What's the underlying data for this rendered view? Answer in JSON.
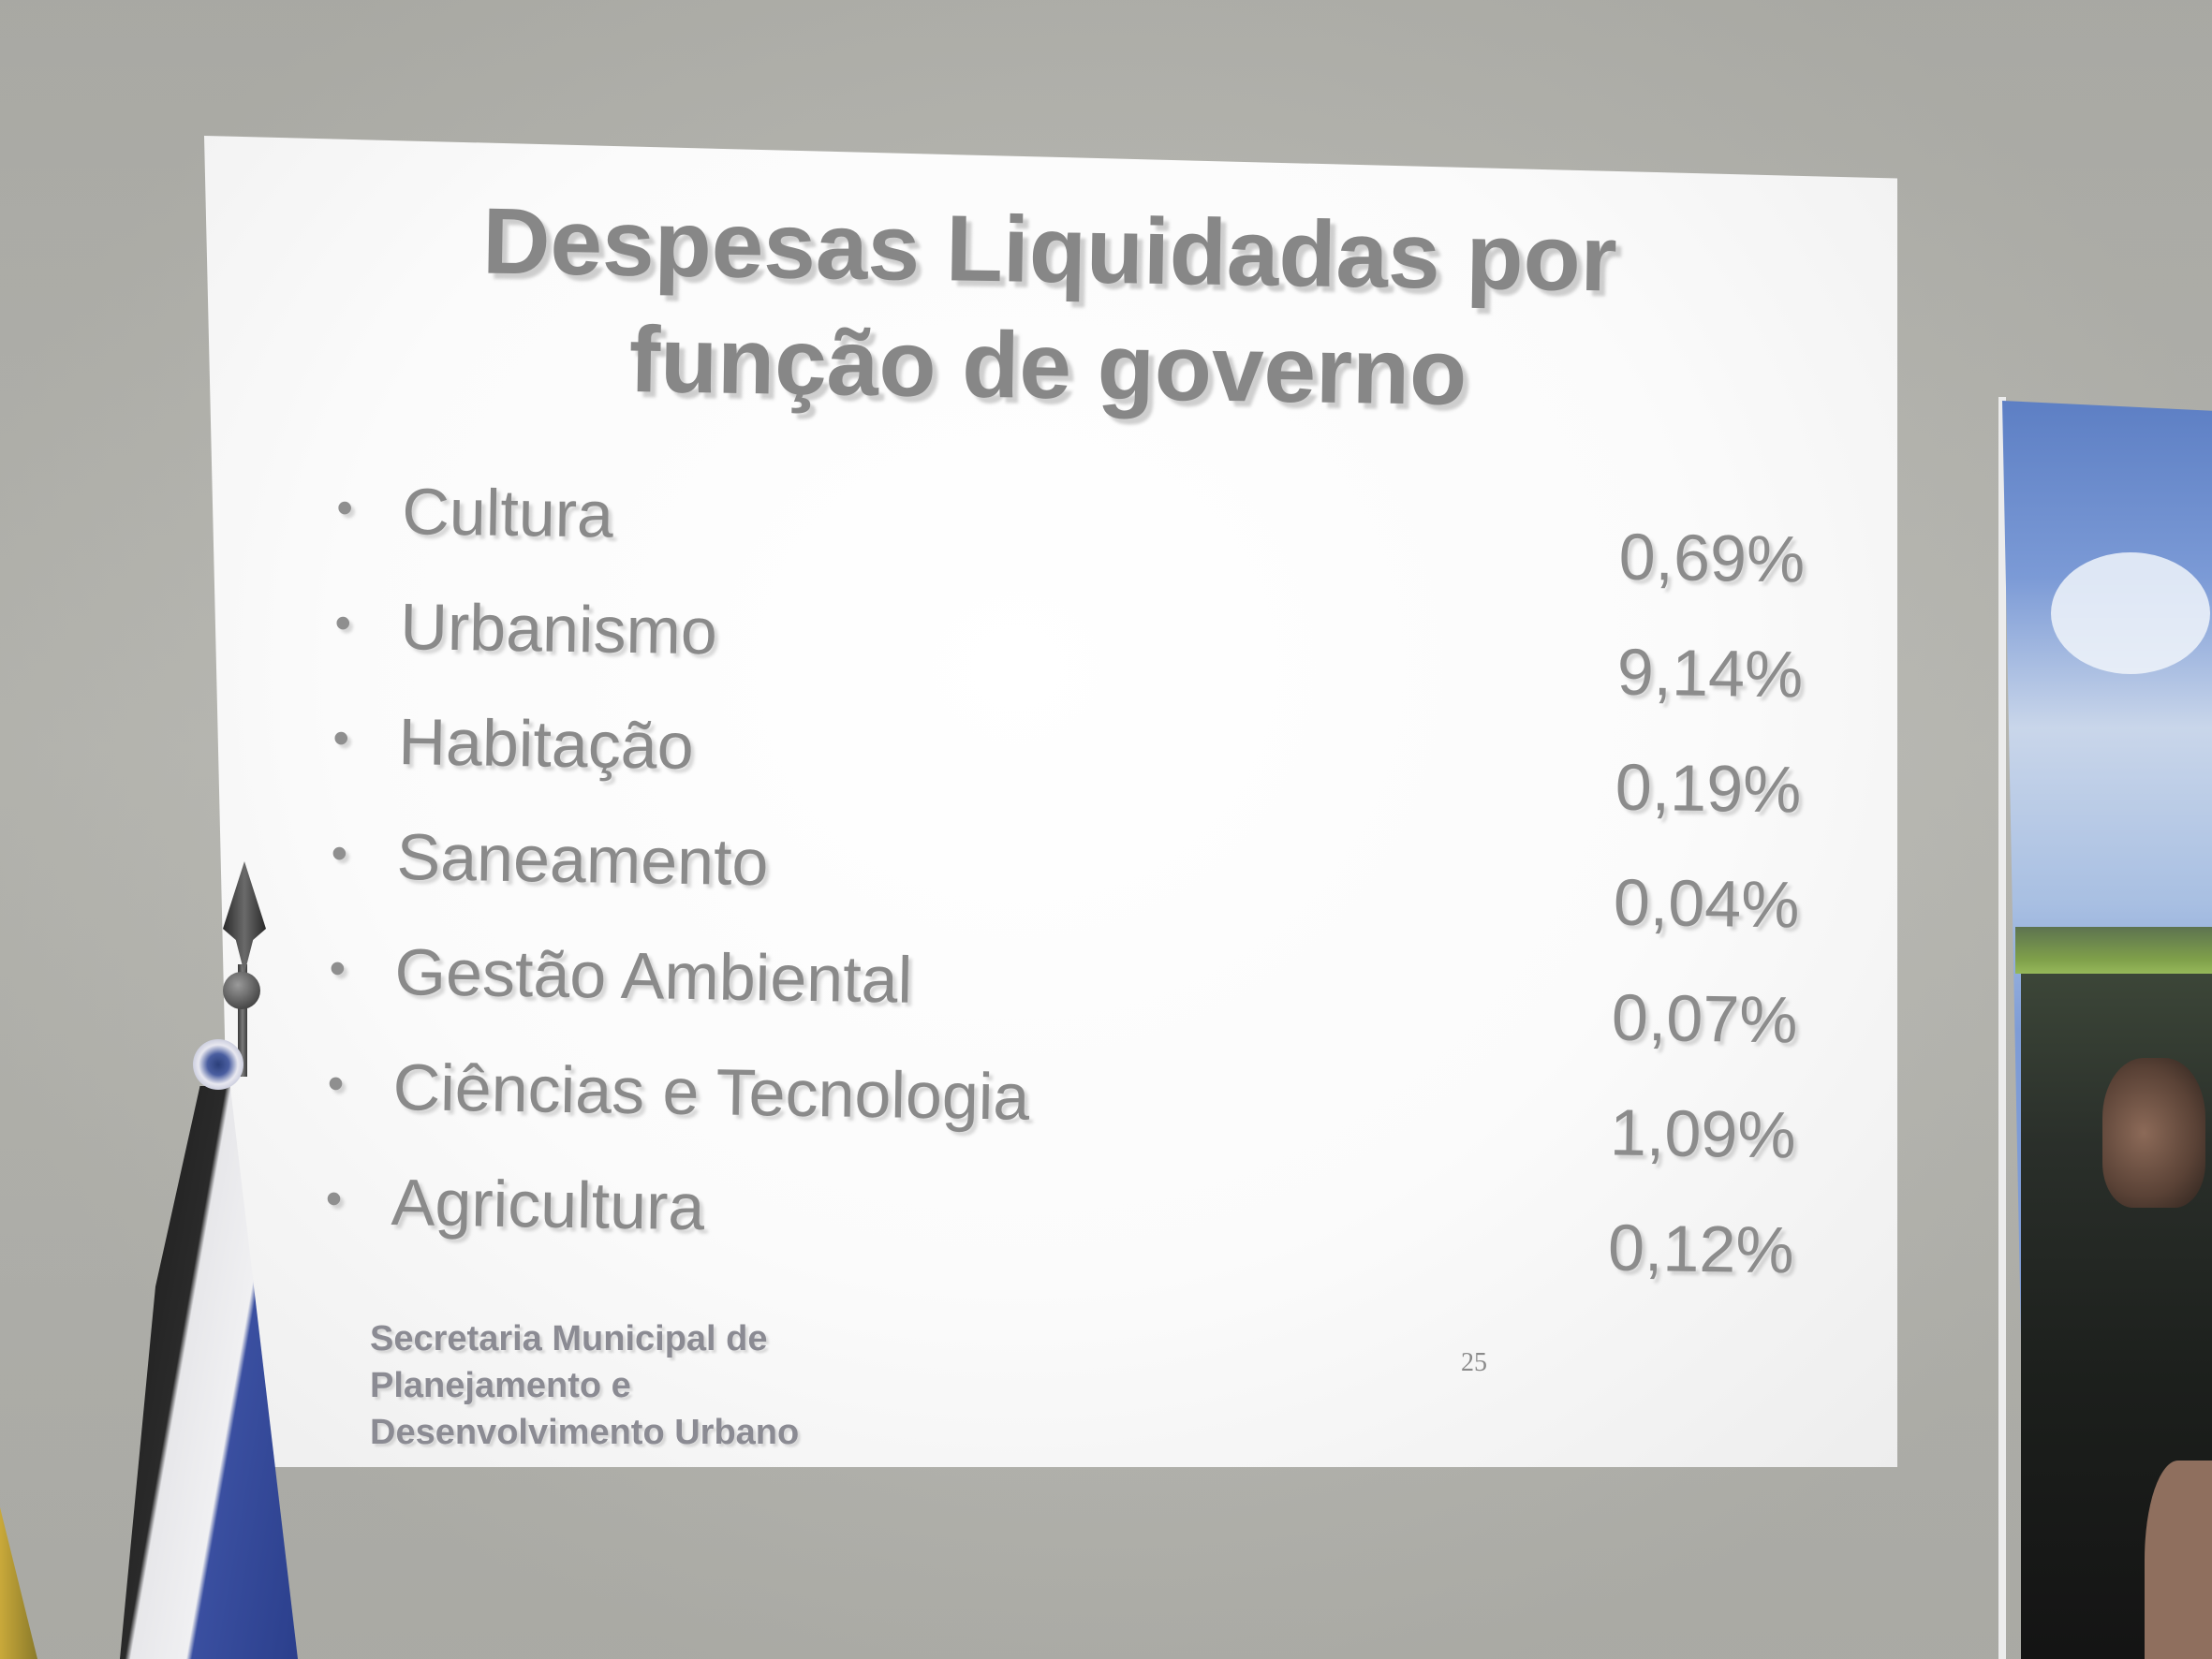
{
  "slide": {
    "title_line1": "Despesas Liquidadas por",
    "title_line2": "função de governo",
    "items": [
      {
        "label": "Cultura",
        "value": "0,69%"
      },
      {
        "label": "Urbanismo",
        "value": "9,14%"
      },
      {
        "label": "Habitação",
        "value": "0,19%"
      },
      {
        "label": "Saneamento",
        "value": "0,04%"
      },
      {
        "label": "Gestão Ambiental",
        "value": "0,07%"
      },
      {
        "label": "Ciências e Tecnologia",
        "value": "1,09%"
      },
      {
        "label": "Agricultura",
        "value": "0,12%"
      }
    ],
    "bullet": "•",
    "footer": {
      "line1": "Secretaria Municipal de",
      "line2": "Planejamento e",
      "line3": "Desenvolvimento Urbano"
    },
    "page_number": "25"
  },
  "colors": {
    "wall": "#b8b8b2",
    "slide_background": "#ffffff",
    "slide_text": "#878787",
    "footer_text": "#8b8b93"
  }
}
